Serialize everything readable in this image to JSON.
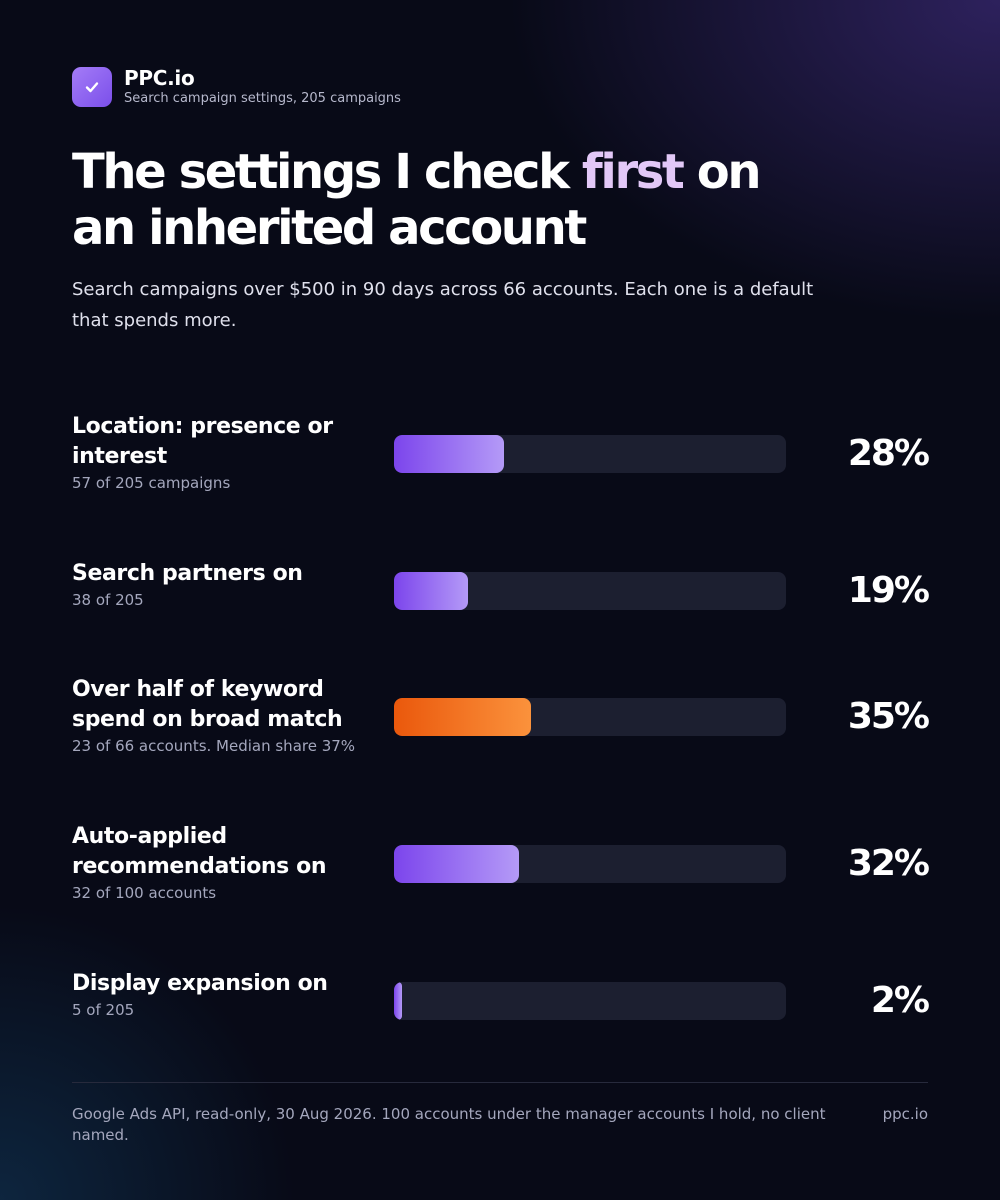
{
  "brand": {
    "name": "PPC.io",
    "subtitle": "Search campaign settings, 205 campaigns",
    "accent_color": "#8b5cf6",
    "icon": "checkmark-icon"
  },
  "headline": {
    "part1": "The settings I check ",
    "accent": "first",
    "part2": " on an inherited account"
  },
  "subtitle": "Search campaigns over $500 in 90 days across 66 accounts. Each one is a default that spends more.",
  "chart_data": {
    "type": "bar",
    "orientation": "horizontal",
    "unit": "%",
    "xlim": [
      0,
      100
    ],
    "categories": [
      "Location: presence or interest",
      "Search partners on",
      "Over half of keyword spend on broad match",
      "Auto-applied recommendations on",
      "Display expansion on"
    ],
    "values": [
      28,
      19,
      35,
      32,
      2
    ],
    "labels": [
      "28%",
      "19%",
      "35%",
      "32%",
      "2%"
    ],
    "details": [
      "57 of 205 campaigns",
      "38 of 205",
      "23 of 66 accounts. Median share 37%",
      "32 of 100 accounts",
      "5 of 205"
    ],
    "bar_colors": [
      "#8b5cf6",
      "#8b5cf6",
      "#f97316",
      "#8b5cf6",
      "#8b5cf6"
    ],
    "track_color": "#1c1f30"
  },
  "footer": {
    "note": "Google Ads API, read-only, 30 Aug 2026. 100 accounts under the manager accounts I hold, no client named.",
    "site": "ppc.io"
  }
}
